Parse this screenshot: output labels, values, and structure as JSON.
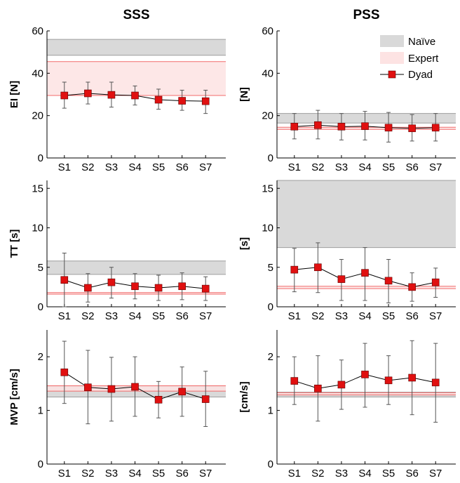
{
  "colors": {
    "naive_band": "#d9d9d9",
    "naive_line": "#9e9e9e",
    "expert_band": "#fde3e3",
    "expert_line": "#f26b6b",
    "dyad_marker": "#e01010",
    "dyad_line": "#000000",
    "error_bar": "#555555"
  },
  "chart_data": [
    {
      "id": "sss-ei",
      "column_title": "SSS",
      "ylabel": "EI [N]",
      "type": "line",
      "ylim": [
        0,
        60
      ],
      "yticks": [
        "0",
        "20",
        "40",
        "60"
      ],
      "categories": [
        "S1",
        "S2",
        "S3",
        "S4",
        "S5",
        "S6",
        "S7"
      ],
      "naive_band": [
        48.5,
        56
      ],
      "expert_band": [
        29.5,
        45.5
      ],
      "dyad": [
        29.5,
        30.5,
        29.8,
        29.5,
        27.5,
        27.0,
        26.8
      ],
      "dyad_err_low": [
        23.5,
        25.5,
        24.0,
        25.0,
        23.0,
        22.5,
        21.0
      ],
      "dyad_err_high": [
        35.8,
        35.8,
        35.8,
        34.0,
        32.5,
        32.0,
        32.0
      ],
      "legend": null
    },
    {
      "id": "pss-ei",
      "column_title": "PSS",
      "ylabel": "[N]",
      "type": "line",
      "ylim": [
        0,
        60
      ],
      "yticks": [
        "0",
        "20",
        "40",
        "60"
      ],
      "categories": [
        "S1",
        "S2",
        "S3",
        "S4",
        "S5",
        "S6",
        "S7"
      ],
      "naive_band": [
        16.5,
        21.0
      ],
      "expert_band": [
        13.5,
        14.5
      ],
      "dyad": [
        14.8,
        15.5,
        14.8,
        15.0,
        14.3,
        14.0,
        14.3
      ],
      "dyad_err_low": [
        9.0,
        9.0,
        8.5,
        8.5,
        7.5,
        8.0,
        8.0
      ],
      "dyad_err_high": [
        21.0,
        22.5,
        21.0,
        22.0,
        21.5,
        20.5,
        21.0
      ],
      "legend": [
        "Naïve",
        "Expert",
        "Dyad"
      ]
    },
    {
      "id": "sss-tt",
      "column_title": "",
      "ylabel": "TT [s]",
      "type": "line",
      "ylim": [
        0,
        16
      ],
      "yticks": [
        "0",
        "5",
        "10",
        "15"
      ],
      "categories": [
        "S1",
        "S2",
        "S3",
        "S4",
        "S5",
        "S6",
        "S7"
      ],
      "naive_band": [
        4.1,
        5.8
      ],
      "expert_band": [
        1.6,
        1.8
      ],
      "dyad": [
        3.4,
        2.4,
        3.1,
        2.6,
        2.4,
        2.6,
        2.3
      ],
      "dyad_err_low": [
        0.0,
        0.6,
        1.1,
        1.0,
        0.8,
        0.9,
        0.8
      ],
      "dyad_err_high": [
        6.8,
        4.2,
        5.0,
        4.2,
        4.0,
        4.3,
        3.8
      ],
      "legend": null
    },
    {
      "id": "pss-tt",
      "column_title": "",
      "ylabel": "[s]",
      "type": "line",
      "ylim": [
        0,
        16
      ],
      "yticks": [
        "0",
        "5",
        "10",
        "15"
      ],
      "categories": [
        "S1",
        "S2",
        "S3",
        "S4",
        "S5",
        "S6",
        "S7"
      ],
      "naive_band": [
        7.5,
        16.0
      ],
      "expert_band": [
        2.3,
        2.6
      ],
      "dyad": [
        4.7,
        5.0,
        3.5,
        4.3,
        3.3,
        2.5,
        3.1
      ],
      "dyad_err_low": [
        1.9,
        1.8,
        0.8,
        0.8,
        0.5,
        0.7,
        1.2
      ],
      "dyad_err_high": [
        7.4,
        8.1,
        6.0,
        7.5,
        6.0,
        4.3,
        4.9
      ],
      "legend": null
    },
    {
      "id": "sss-mvp",
      "column_title": "",
      "ylabel": "MVP [cm/s]",
      "type": "line",
      "ylim": [
        0,
        2.5
      ],
      "yticks": [
        "0",
        "1",
        "2"
      ],
      "categories": [
        "S1",
        "S2",
        "S3",
        "S4",
        "S5",
        "S6",
        "S7"
      ],
      "naive_band": [
        1.25,
        1.45
      ],
      "expert_band": [
        1.36,
        1.46
      ],
      "dyad": [
        1.71,
        1.43,
        1.4,
        1.44,
        1.2,
        1.35,
        1.21
      ],
      "dyad_err_low": [
        1.13,
        0.75,
        0.8,
        0.89,
        0.86,
        0.89,
        0.7
      ],
      "dyad_err_high": [
        2.29,
        2.12,
        1.99,
        2.0,
        1.54,
        1.81,
        1.73
      ],
      "legend": null
    },
    {
      "id": "pss-mvp",
      "column_title": "",
      "ylabel": "[cm/s]",
      "type": "line",
      "ylim": [
        0,
        2.5
      ],
      "yticks": [
        "0",
        "1",
        "2"
      ],
      "categories": [
        "S1",
        "S2",
        "S3",
        "S4",
        "S5",
        "S6",
        "S7"
      ],
      "naive_band": [
        1.25,
        1.34
      ],
      "expert_band": [
        1.29,
        1.33
      ],
      "dyad": [
        1.55,
        1.41,
        1.48,
        1.67,
        1.56,
        1.61,
        1.52
      ],
      "dyad_err_low": [
        1.11,
        0.8,
        1.02,
        1.06,
        1.11,
        0.92,
        0.78
      ],
      "dyad_err_high": [
        2.0,
        2.02,
        1.94,
        2.25,
        2.02,
        2.3,
        2.25
      ],
      "legend": null
    }
  ]
}
